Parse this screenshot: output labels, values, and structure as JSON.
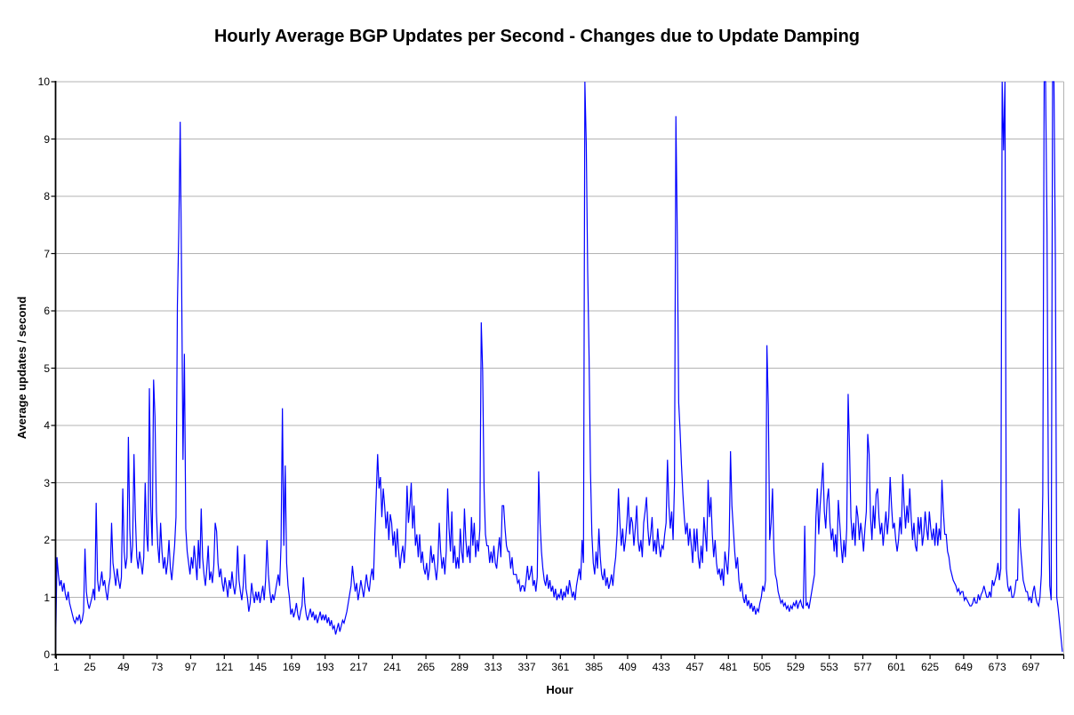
{
  "chart_data": {
    "type": "line",
    "title": "Hourly Average BGP Updates per Second - Changes due to Update Damping",
    "xlabel": "Hour",
    "ylabel": "Average updates / second",
    "ylim": [
      0,
      10
    ],
    "x_count": 720,
    "x_tick_labels": [
      "1",
      "25",
      "49",
      "73",
      "97",
      "121",
      "145",
      "169",
      "193",
      "217",
      "241",
      "265",
      "289",
      "313",
      "337",
      "361",
      "385",
      "409",
      "433",
      "457",
      "481",
      "505",
      "529",
      "553",
      "577",
      "601",
      "625",
      "649",
      "673",
      "697"
    ],
    "y_tick_labels": [
      "0",
      "1",
      "2",
      "3",
      "4",
      "5",
      "6",
      "7",
      "8",
      "9",
      "10"
    ],
    "grid": "horizontal",
    "legend": "none",
    "colors": {
      "line": "#0000ff",
      "gridline": "#b3b3b3",
      "axis": "#000000",
      "text": "#000000",
      "background": "#ffffff"
    },
    "series": [
      {
        "name": "hourly-average-bgp-updates",
        "color": "#0000ff",
        "values": [
          0.05,
          1.7,
          1.4,
          1.2,
          1.3,
          1.1,
          1.25,
          1.05,
          0.95,
          1.1,
          0.9,
          0.8,
          0.7,
          0.6,
          0.55,
          0.65,
          0.6,
          0.7,
          0.55,
          0.6,
          0.75,
          1.85,
          1.1,
          0.9,
          0.8,
          0.9,
          1.0,
          1.15,
          0.95,
          2.65,
          1.3,
          1.1,
          1.25,
          1.45,
          1.2,
          1.3,
          1.1,
          0.95,
          1.2,
          1.35,
          2.3,
          1.6,
          1.4,
          1.2,
          1.5,
          1.3,
          1.15,
          1.35,
          2.9,
          1.8,
          1.5,
          1.7,
          3.8,
          2.2,
          1.6,
          1.9,
          3.5,
          2.4,
          1.7,
          1.5,
          1.8,
          1.6,
          1.4,
          1.7,
          3.0,
          2.1,
          1.8,
          4.65,
          2.6,
          1.9,
          4.8,
          4.15,
          2.5,
          1.9,
          1.6,
          2.3,
          1.8,
          1.5,
          1.7,
          1.4,
          1.6,
          2.0,
          1.5,
          1.3,
          1.6,
          1.9,
          2.4,
          6.1,
          7.4,
          9.3,
          6.6,
          3.4,
          5.25,
          2.2,
          1.8,
          1.6,
          1.4,
          1.7,
          1.5,
          1.9,
          1.6,
          1.3,
          2.0,
          1.5,
          2.55,
          1.7,
          1.4,
          1.2,
          1.5,
          1.9,
          1.3,
          1.45,
          1.25,
          1.55,
          2.3,
          2.15,
          1.6,
          1.35,
          1.5,
          1.25,
          1.1,
          1.35,
          1.2,
          1.0,
          1.3,
          1.15,
          1.45,
          1.2,
          1.05,
          1.25,
          1.9,
          1.3,
          1.1,
          0.95,
          1.2,
          1.75,
          1.15,
          1.0,
          0.75,
          0.9,
          1.25,
          1.05,
          0.9,
          1.1,
          0.95,
          1.1,
          0.9,
          1.05,
          1.2,
          0.95,
          1.3,
          2.0,
          1.4,
          1.1,
          0.9,
          1.05,
          0.95,
          1.1,
          1.25,
          1.4,
          1.2,
          1.9,
          4.3,
          1.9,
          3.3,
          1.6,
          1.2,
          1.0,
          0.7,
          0.8,
          0.65,
          0.75,
          0.9,
          0.7,
          0.6,
          0.75,
          0.85,
          1.35,
          0.9,
          0.7,
          0.6,
          0.7,
          0.8,
          0.65,
          0.75,
          0.6,
          0.7,
          0.55,
          0.65,
          0.75,
          0.6,
          0.7,
          0.6,
          0.7,
          0.55,
          0.65,
          0.5,
          0.6,
          0.45,
          0.5,
          0.35,
          0.45,
          0.55,
          0.4,
          0.5,
          0.6,
          0.55,
          0.65,
          0.75,
          0.9,
          1.05,
          1.2,
          1.55,
          1.3,
          1.1,
          1.25,
          0.95,
          1.1,
          1.3,
          1.15,
          1.0,
          1.2,
          1.4,
          1.2,
          1.1,
          1.35,
          1.5,
          1.3,
          2.1,
          2.8,
          3.5,
          2.9,
          3.1,
          2.4,
          2.9,
          2.6,
          2.2,
          2.5,
          2.0,
          2.45,
          2.3,
          1.9,
          2.15,
          1.7,
          2.2,
          1.8,
          1.5,
          1.75,
          1.9,
          1.6,
          2.0,
          2.95,
          2.3,
          2.6,
          3.0,
          2.2,
          2.6,
          1.9,
          2.1,
          1.7,
          2.1,
          1.6,
          1.8,
          1.5,
          1.4,
          1.6,
          1.3,
          1.5,
          1.9,
          1.6,
          1.75,
          1.5,
          1.3,
          1.6,
          2.3,
          1.8,
          1.5,
          1.7,
          1.4,
          1.8,
          2.9,
          2.2,
          1.8,
          2.5,
          1.6,
          1.9,
          1.5,
          1.7,
          1.5,
          2.2,
          1.8,
          1.6,
          2.55,
          2.0,
          1.7,
          1.9,
          1.6,
          2.4,
          1.9,
          2.3,
          1.7,
          2.0,
          1.8,
          2.2,
          5.8,
          4.95,
          2.9,
          2.1,
          1.9,
          1.9,
          1.6,
          1.8,
          1.6,
          1.9,
          1.6,
          1.5,
          1.8,
          2.05,
          1.7,
          2.6,
          2.6,
          2.2,
          1.9,
          1.8,
          1.8,
          1.5,
          1.7,
          1.4,
          1.4,
          1.4,
          1.25,
          1.3,
          1.1,
          1.2,
          1.2,
          1.1,
          1.3,
          1.55,
          1.3,
          1.4,
          1.55,
          1.2,
          1.3,
          1.1,
          1.35,
          3.2,
          2.3,
          1.8,
          1.5,
          1.3,
          1.2,
          1.4,
          1.15,
          1.3,
          1.1,
          1.2,
          1.0,
          1.15,
          0.95,
          1.05,
          1.0,
          1.15,
          0.95,
          1.1,
          1.0,
          1.2,
          1.05,
          1.3,
          1.15,
          1.0,
          1.1,
          0.95,
          1.2,
          1.35,
          1.5,
          1.3,
          2.0,
          1.6,
          10.5,
          8.9,
          6.7,
          5.2,
          3.2,
          2.1,
          1.6,
          1.4,
          1.8,
          1.5,
          2.2,
          1.7,
          1.4,
          1.3,
          1.5,
          1.2,
          1.35,
          1.15,
          1.25,
          1.4,
          1.2,
          1.5,
          1.7,
          2.1,
          2.9,
          2.3,
          1.9,
          2.2,
          1.8,
          2.0,
          2.3,
          2.75,
          2.1,
          2.4,
          2.3,
          1.9,
          2.2,
          2.6,
          2.0,
          1.8,
          2.0,
          1.7,
          2.3,
          2.5,
          2.75,
          2.2,
          1.9,
          2.1,
          2.4,
          1.8,
          2.0,
          1.75,
          2.2,
          1.9,
          1.7,
          1.9,
          1.85,
          2.1,
          2.3,
          3.4,
          2.6,
          2.2,
          2.5,
          2.0,
          3.0,
          9.4,
          7.3,
          4.4,
          3.9,
          3.3,
          2.8,
          2.4,
          2.1,
          2.3,
          1.9,
          2.2,
          1.9,
          1.6,
          2.2,
          1.8,
          2.2,
          1.7,
          1.5,
          1.9,
          1.6,
          2.4,
          2.1,
          1.8,
          3.05,
          2.4,
          2.75,
          2.1,
          1.7,
          2.0,
          1.6,
          1.4,
          1.5,
          1.3,
          1.5,
          1.2,
          1.8,
          1.6,
          1.4,
          1.9,
          3.55,
          2.6,
          2.2,
          1.8,
          1.5,
          1.7,
          1.3,
          1.1,
          1.25,
          1.0,
          0.9,
          1.05,
          0.85,
          0.95,
          0.8,
          0.9,
          0.75,
          0.85,
          0.7,
          0.8,
          0.75,
          0.9,
          1.0,
          1.2,
          1.1,
          1.3,
          5.4,
          4.35,
          2.0,
          2.3,
          2.9,
          1.8,
          1.4,
          1.3,
          1.1,
          1.0,
          0.9,
          0.95,
          0.85,
          0.9,
          0.8,
          0.85,
          0.75,
          0.85,
          0.8,
          0.9,
          0.85,
          0.95,
          0.8,
          0.9,
          0.95,
          0.85,
          0.8,
          2.25,
          0.85,
          0.9,
          0.8,
          0.95,
          1.1,
          1.25,
          1.4,
          2.4,
          2.9,
          2.1,
          2.6,
          2.95,
          3.35,
          2.5,
          2.2,
          2.7,
          2.9,
          2.3,
          2.0,
          2.2,
          1.8,
          2.1,
          1.7,
          2.7,
          2.3,
          1.9,
          1.6,
          2.0,
          1.7,
          2.2,
          4.55,
          3.6,
          2.4,
          2.0,
          2.3,
          1.9,
          2.6,
          2.4,
          2.0,
          2.3,
          2.1,
          1.8,
          2.2,
          2.5,
          3.85,
          3.5,
          2.4,
          2.0,
          2.6,
          2.2,
          2.8,
          2.9,
          2.4,
          2.1,
          2.3,
          1.9,
          2.2,
          2.5,
          2.1,
          2.4,
          3.1,
          2.6,
          2.2,
          2.3,
          2.0,
          1.8,
          2.0,
          2.4,
          2.1,
          3.15,
          2.6,
          2.2,
          2.6,
          2.3,
          2.9,
          2.4,
          2.0,
          2.3,
          1.9,
          1.8,
          2.4,
          2.1,
          2.4,
          1.9,
          2.1,
          2.5,
          2.2,
          2.0,
          2.5,
          2.2,
          2.0,
          2.2,
          1.9,
          2.3,
          1.9,
          2.2,
          2.0,
          3.05,
          2.5,
          2.1,
          2.1,
          1.8,
          1.7,
          1.5,
          1.4,
          1.3,
          1.25,
          1.2,
          1.1,
          1.15,
          1.05,
          1.1,
          1.1,
          0.95,
          1.0,
          0.95,
          0.9,
          0.85,
          0.85,
          0.9,
          1.0,
          0.9,
          0.9,
          1.05,
          0.95,
          1.05,
          1.1,
          1.2,
          1.1,
          1.0,
          1.0,
          1.1,
          1.0,
          1.3,
          1.2,
          1.3,
          1.4,
          1.6,
          1.3,
          1.5,
          10.3,
          8.8,
          10.2,
          1.5,
          1.2,
          1.1,
          1.2,
          1.0,
          1.0,
          1.1,
          1.3,
          1.3,
          2.55,
          1.9,
          1.6,
          1.3,
          1.2,
          1.1,
          1.1,
          0.95,
          1.0,
          0.9,
          1.1,
          1.2,
          1.0,
          0.9,
          0.85,
          1.0,
          1.4,
          2.8,
          10.4,
          10.3,
          7.5,
          2.9,
          1.2,
          0.95,
          10.2,
          10.3,
          6.9,
          1.0,
          0.8,
          0.55,
          0.3,
          0.05
        ]
      }
    ]
  }
}
